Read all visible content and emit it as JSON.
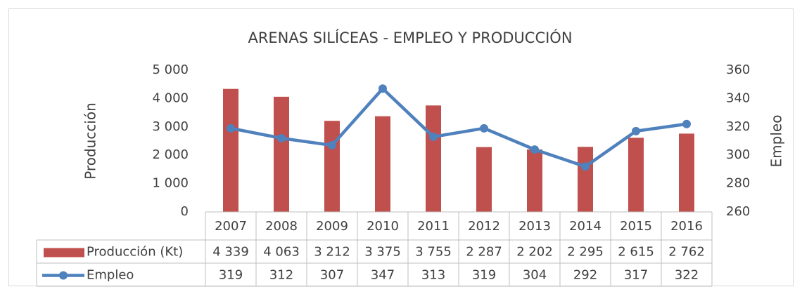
{
  "chart_data": {
    "type": "bar",
    "title": "ARENAS SILÍCEAS - EMPLEO Y PRODUCCIÓN",
    "y_label": "Producción",
    "y2_label": "Empleo",
    "categories": [
      "2007",
      "2008",
      "2009",
      "2010",
      "2011",
      "2012",
      "2013",
      "2014",
      "2015",
      "2016"
    ],
    "series": [
      {
        "name": "Producción (Kt)",
        "type": "bar",
        "color": "#c0504d",
        "values": [
          4339,
          4063,
          3212,
          3375,
          3755,
          2287,
          2202,
          2295,
          2615,
          2762
        ],
        "value_labels": [
          "4 339",
          "4 063",
          "3 212",
          "3 375",
          "3 755",
          "2 287",
          "2 202",
          "2 295",
          "2 615",
          "2 762"
        ]
      },
      {
        "name": "Empleo",
        "type": "line",
        "axis": "y2",
        "color": "#4f81bd",
        "values": [
          319,
          312,
          307,
          347,
          313,
          319,
          304,
          292,
          317,
          322
        ]
      }
    ],
    "ylim": [
      0,
      5000
    ],
    "yticks": [
      0,
      {
        "value": 1000,
        "label": "1 000"
      },
      {
        "value": 2000,
        "label": "2 000"
      },
      {
        "value": 3000,
        "label": "3 000"
      },
      {
        "value": 4000,
        "label": "4 000"
      },
      {
        "value": 5000,
        "label": "5 000"
      }
    ],
    "y2lim": [
      260,
      360
    ],
    "y2ticks": [
      260,
      280,
      300,
      320,
      340,
      360
    ],
    "grid": false,
    "data_table": true
  }
}
